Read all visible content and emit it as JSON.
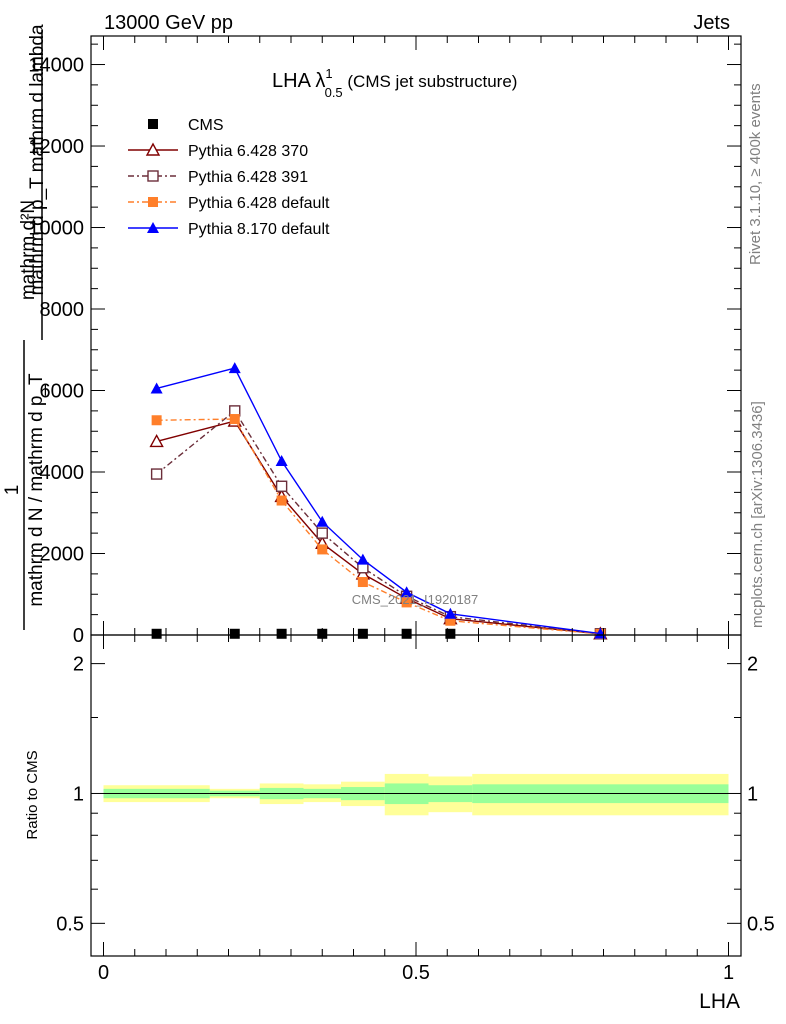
{
  "header": {
    "left": "13000 GeV pp",
    "right": "Jets"
  },
  "side": {
    "rivet": "Rivet 3.1.10, ≥ 400k events",
    "mcplots": "mcplots.cern.ch [arXiv:1306.3436]"
  },
  "watermark": "CMS_2021_I1920187",
  "chart_data": {
    "type": "line",
    "title": {
      "main": "LHA λ",
      "sup": "1",
      "sub": "0.5",
      "rest": " (CMS jet substructure)"
    },
    "ylabel": {
      "frac1_numer": "mathrm d²N",
      "frac1_denom": "mathrm d p_T mathrm d lambda",
      "one": "1",
      "frac2_denom": "mathrm d N / mathrm d p_T"
    },
    "xlabel": "LHA",
    "xlim": [
      -0.02,
      1.02
    ],
    "ylim": [
      0,
      14700
    ],
    "ratio_ylabel": "Ratio to CMS",
    "ratio_ylim": [
      0.42,
      2.33
    ],
    "main_y_ticks": [
      {
        "v": 0,
        "label": "0"
      },
      {
        "v": 2000,
        "label": "2000"
      },
      {
        "v": 4000,
        "label": "4000"
      },
      {
        "v": 6000,
        "label": "6000"
      },
      {
        "v": 8000,
        "label": "8000"
      },
      {
        "v": 10000,
        "label": "10000"
      },
      {
        "v": 12000,
        "label": "12000"
      },
      {
        "v": 14000,
        "label": "14000"
      }
    ],
    "ratio_y_ticks": [
      {
        "v": 0.5,
        "label": "0.5"
      },
      {
        "v": 1,
        "label": "1"
      },
      {
        "v": 2,
        "label": "2"
      }
    ],
    "x_ticks": [
      {
        "v": 0,
        "label": "0"
      },
      {
        "v": 0.5,
        "label": "0.5"
      },
      {
        "v": 1,
        "label": "1"
      }
    ],
    "x": [
      0.085,
      0.21,
      0.285,
      0.35,
      0.415,
      0.485,
      0.555,
      0.795
    ],
    "series": [
      {
        "name": "CMS",
        "color": "#000000",
        "marker": "square-filled",
        "dash": "none",
        "values": [
          30,
          30,
          30,
          30,
          30,
          30,
          30,
          30
        ]
      },
      {
        "name": "Pythia 6.428 370",
        "color": "#800000",
        "marker": "triangle-open",
        "dash": "solid",
        "values": [
          4750,
          5250,
          3400,
          2250,
          1500,
          900,
          400,
          30
        ]
      },
      {
        "name": "Pythia 6.428 391",
        "color": "#6b2e3a",
        "marker": "square-open",
        "dash": "dashdot",
        "values": [
          3950,
          5500,
          3650,
          2500,
          1650,
          950,
          450,
          30
        ]
      },
      {
        "name": "Pythia 6.428 default",
        "color": "#ff7f2a",
        "marker": "square-filled",
        "dash": "dashdot",
        "values": [
          5270,
          5300,
          3300,
          2100,
          1300,
          800,
          350,
          25
        ]
      },
      {
        "name": "Pythia 8.170 default",
        "color": "#0000ff",
        "marker": "triangle-filled",
        "dash": "solid",
        "values": [
          6050,
          6550,
          4270,
          2780,
          1850,
          1050,
          520,
          35
        ]
      }
    ],
    "ratio_bands": [
      {
        "x0": 0.0,
        "x1": 0.17,
        "yellow": [
          0.955,
          1.045
        ],
        "green": [
          0.975,
          1.025
        ]
      },
      {
        "x0": 0.17,
        "x1": 0.25,
        "yellow": [
          0.975,
          1.025
        ],
        "green": [
          0.985,
          1.015
        ]
      },
      {
        "x0": 0.25,
        "x1": 0.32,
        "yellow": [
          0.945,
          1.055
        ],
        "green": [
          0.97,
          1.03
        ]
      },
      {
        "x0": 0.32,
        "x1": 0.38,
        "yellow": [
          0.955,
          1.05
        ],
        "green": [
          0.975,
          1.025
        ]
      },
      {
        "x0": 0.38,
        "x1": 0.45,
        "yellow": [
          0.935,
          1.065
        ],
        "green": [
          0.965,
          1.035
        ]
      },
      {
        "x0": 0.45,
        "x1": 0.52,
        "yellow": [
          0.89,
          1.11
        ],
        "green": [
          0.945,
          1.055
        ]
      },
      {
        "x0": 0.52,
        "x1": 0.59,
        "yellow": [
          0.905,
          1.095
        ],
        "green": [
          0.955,
          1.045
        ]
      },
      {
        "x0": 0.59,
        "x1": 1.0,
        "yellow": [
          0.89,
          1.11
        ],
        "green": [
          0.95,
          1.05
        ]
      }
    ],
    "colors": {
      "yellow": "#ffff99",
      "green": "#99ff99"
    }
  }
}
